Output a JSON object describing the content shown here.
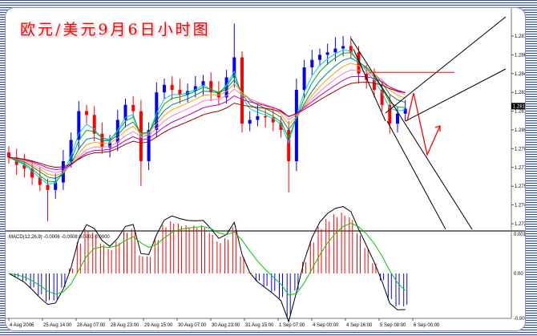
{
  "title": "欧元/美元9月6日小时图",
  "chart_data": {
    "type": "candlestick",
    "title": "欧元/美元9月6日小时图",
    "ylim": [
      1.272,
      1.2895
    ],
    "y_ticks": [
      "1.2875",
      "1.2860",
      "1.2845",
      "1.2830",
      "1.2815",
      "1.2800",
      "1.2785",
      "1.2770",
      "1.2755",
      "1.2740",
      "1.2725"
    ],
    "current_price_label": "1.2819",
    "x_ticks": [
      "4 Aug 2006",
      "25 Aug 14:00",
      "28 Aug 07:00",
      "28 Aug 23:00",
      "29 Aug 15:00",
      "30 Aug 07:00",
      "30 Aug 23:00",
      "31 Aug 15:00",
      "1 Sep 07:00",
      "4 Sep 00:00",
      "4 Sep 16:00",
      "5 Sep 08:00",
      "6 Sep 00:00"
    ],
    "closes": [
      1.2778,
      1.2772,
      1.2769,
      1.2762,
      1.2756,
      1.2752,
      1.2758,
      1.2775,
      1.2792,
      1.2815,
      1.2812,
      1.2797,
      1.2786,
      1.279,
      1.2808,
      1.282,
      1.2815,
      1.2775,
      1.28,
      1.283,
      1.2836,
      1.2832,
      1.2828,
      1.2831,
      1.2835,
      1.2839,
      1.283,
      1.2826,
      1.2842,
      1.2858,
      1.2805,
      1.2808,
      1.2811,
      1.281,
      1.2806,
      1.28,
      1.2775,
      1.2832,
      1.285,
      1.2856,
      1.286,
      1.2862,
      1.2865,
      1.2867,
      1.2862,
      1.2845,
      1.284,
      1.2832,
      1.282,
      1.2805,
      1.2813,
      1.2817
    ],
    "wick_extremes": {
      "low": {
        "5": 1.2727,
        "17": 1.2755,
        "36": 1.275,
        "49": 1.2797
      },
      "high": {
        "29": 1.2885,
        "43": 1.2875
      }
    },
    "up_color": "#0000ff",
    "down_color": "#ff0000",
    "ma_colors": [
      "#00c8ff",
      "#00b000",
      "#008080",
      "#ffa000",
      "#ff80c0",
      "#c000c0",
      "#a00000"
    ],
    "macd": {
      "label": "MACD(12,26,9) -0.0006 -0.0008 0.0003 0.0000",
      "ylim": [
        -0.0016,
        0.0014
      ],
      "y_ticks": [
        "0.0014",
        "0.00",
        "-0.0016"
      ],
      "positive_color": "#ff0000",
      "negative_color": "#0000ff",
      "main_color": "#000000",
      "signal_color": "#00cc00"
    },
    "annotations": {
      "horizontal_resistance": 1.2846,
      "line_color": "#ff0000"
    }
  }
}
